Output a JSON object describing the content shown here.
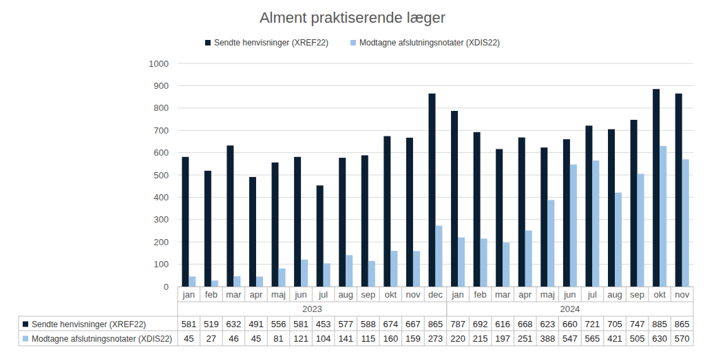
{
  "chart_data": {
    "type": "bar",
    "title": "Alment praktiserende læger",
    "categories": [
      "jan",
      "feb",
      "mar",
      "apr",
      "maj",
      "jun",
      "jul",
      "aug",
      "sep",
      "okt",
      "nov",
      "dec",
      "jan",
      "feb",
      "mar",
      "apr",
      "maj",
      "jun",
      "jul",
      "aug",
      "sep",
      "okt",
      "nov"
    ],
    "category_groups": [
      {
        "label": "2023",
        "size": 12
      },
      {
        "label": "2024",
        "size": 11
      }
    ],
    "series": [
      {
        "name": "Sendte henvisninger (XREF22)",
        "color": "#0b1f33",
        "values": [
          581,
          519,
          632,
          491,
          556,
          581,
          453,
          577,
          588,
          674,
          667,
          865,
          787,
          692,
          616,
          668,
          623,
          660,
          721,
          705,
          747,
          885,
          865
        ]
      },
      {
        "name": "Modtagne afslutningsnotater (XDIS22)",
        "color": "#9dc3e6",
        "values": [
          45,
          27,
          46,
          45,
          81,
          121,
          104,
          141,
          115,
          160,
          159,
          273,
          220,
          215,
          197,
          251,
          388,
          547,
          565,
          421,
          505,
          630,
          570
        ]
      }
    ],
    "ylim": [
      0,
      1000
    ],
    "yticks": [
      0,
      100,
      200,
      300,
      400,
      500,
      600,
      700,
      800,
      900,
      1000
    ],
    "grid": true,
    "legend": "top"
  }
}
